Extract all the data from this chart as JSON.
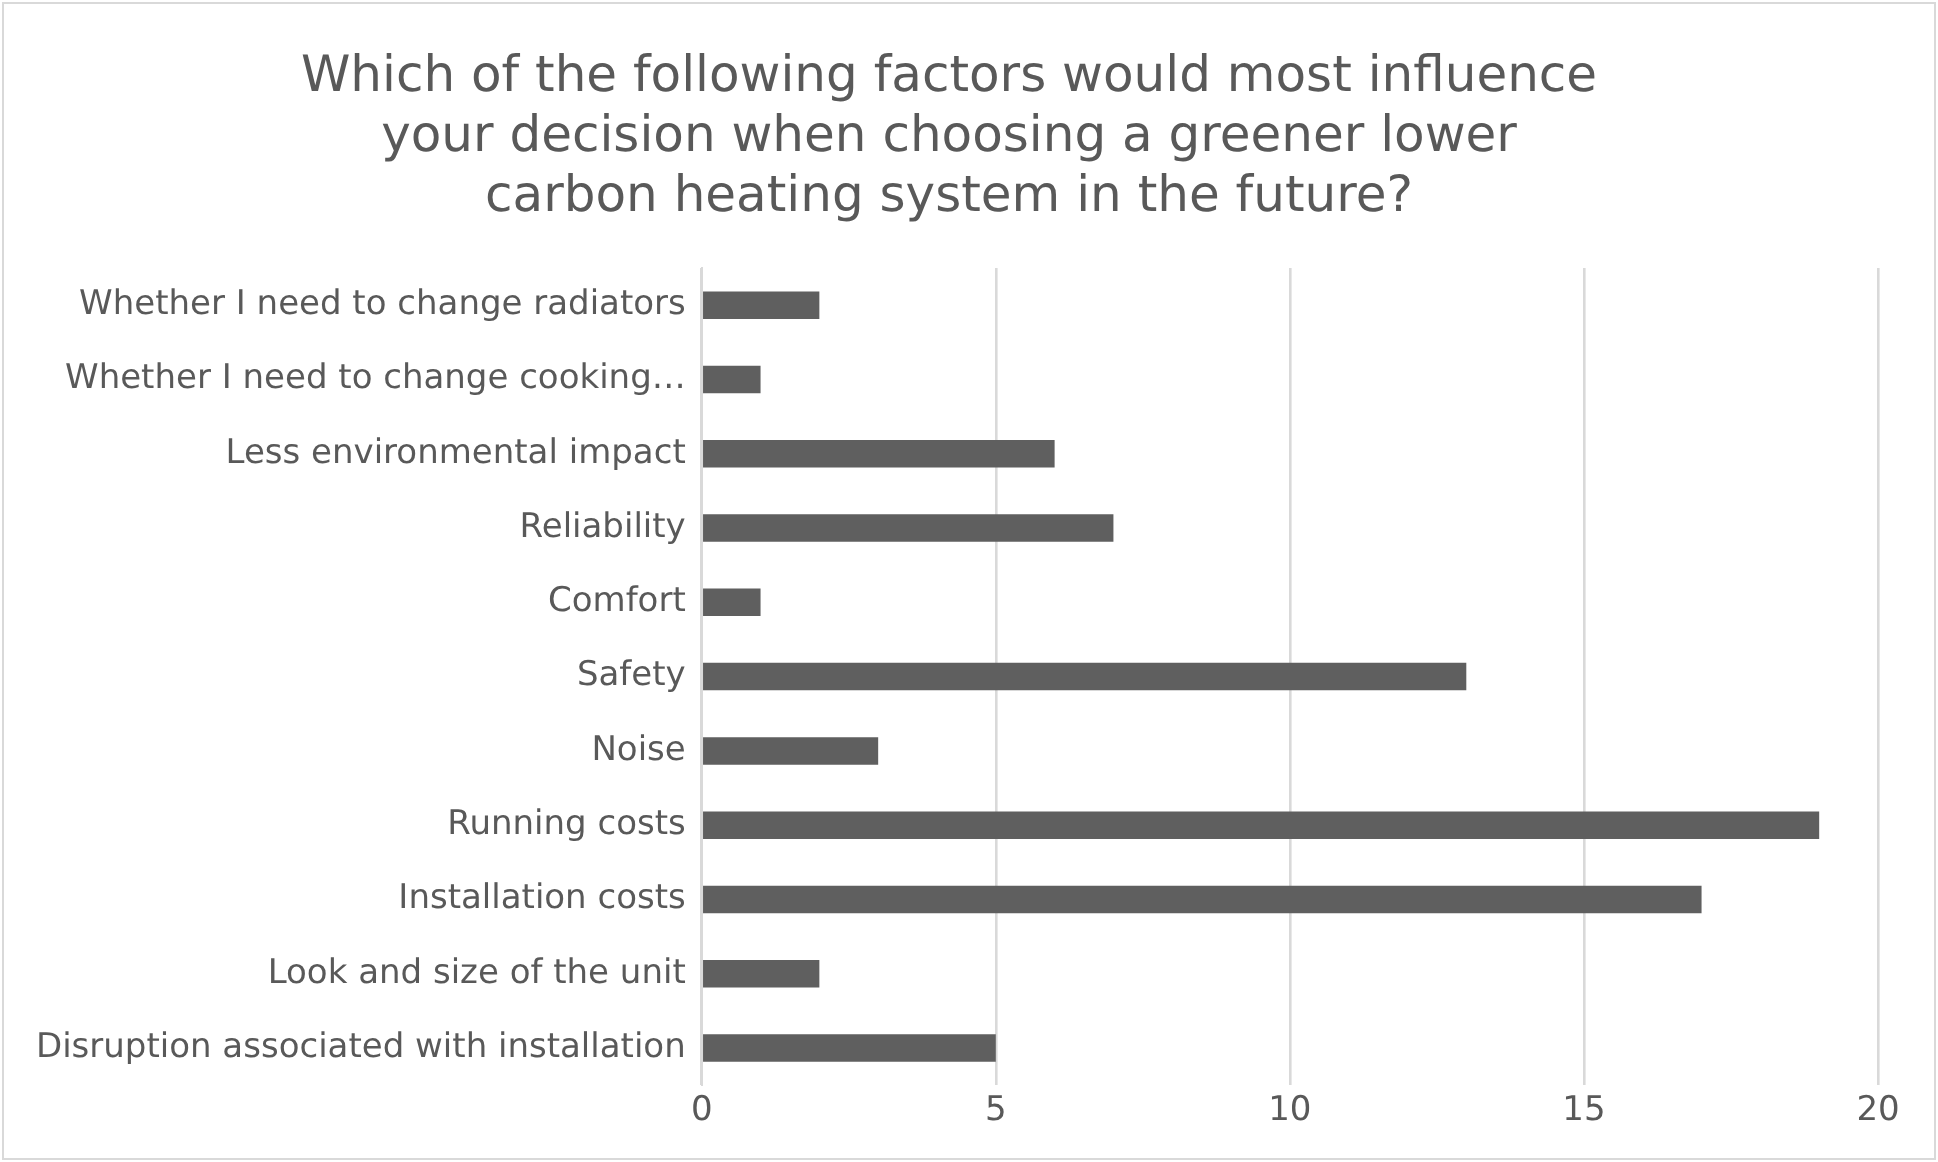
{
  "chart_data": {
    "type": "bar",
    "orientation": "horizontal",
    "title": "Which of the following factors would most influence\nyour decision when choosing a greener lower\ncarbon heating system in the future?",
    "categories": [
      "Whether I need to change radiators",
      "Whether I need to change cooking…",
      "Less environmental impact",
      "Reliability",
      "Comfort",
      "Safety",
      "Noise",
      "Running costs",
      "Installation costs",
      "Look and size of the unit",
      "Disruption associated with installation"
    ],
    "values": [
      2,
      1,
      6,
      7,
      1,
      13,
      3,
      19,
      17,
      2,
      5
    ],
    "color": "#5f5f5f",
    "xlim": [
      0,
      20
    ],
    "xticks": [
      0,
      5,
      10,
      15,
      20
    ],
    "grid": "x",
    "legend": false
  }
}
